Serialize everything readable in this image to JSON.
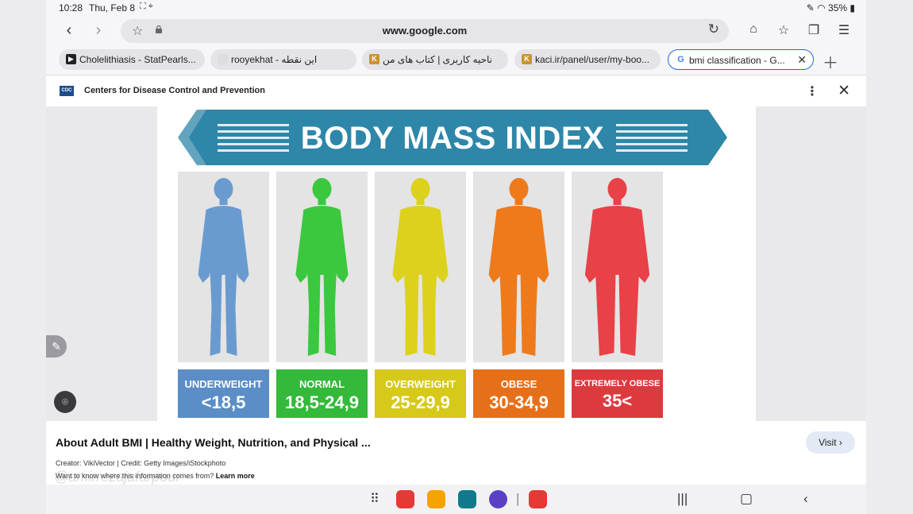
{
  "status_bar": {
    "time": "10:28",
    "date": "Thu, Feb 8",
    "battery": "35%"
  },
  "address_bar": {
    "url": "www.google.com"
  },
  "tabs": [
    {
      "title": "Cholelithiasis - StatPearls...",
      "active": false
    },
    {
      "title": "rooyekhat - این نقطه",
      "active": false
    },
    {
      "title": "ناحیه کاربری | کتاب های من",
      "active": false
    },
    {
      "title": "kaci.ir/panel/user/my-boo...",
      "active": false
    },
    {
      "title": "bmi classification - G...",
      "active": true
    }
  ],
  "source": {
    "name": "Centers for Disease Control and Prevention",
    "logo_text": "CDC"
  },
  "infographic": {
    "title": "BODY MASS INDEX",
    "categories": [
      {
        "name": "UNDERWEIGHT",
        "range": "<18,5",
        "color": "#6a9bd0",
        "label_color": "#5b8ec6"
      },
      {
        "name": "NORMAL",
        "range": "18,5-24,9",
        "color": "#3bc83f",
        "label_color": "#34b93a"
      },
      {
        "name": "OVERWEIGHT",
        "range": "25-29,9",
        "color": "#dcd21d",
        "label_color": "#d6c91a"
      },
      {
        "name": "OBESE",
        "range": "30-34,9",
        "color": "#ee7a1c",
        "label_color": "#e6701a"
      },
      {
        "name": "EXTREMELY OBESE",
        "range": "35<",
        "color": "#e84147",
        "label_color": "#dd3a40"
      }
    ]
  },
  "caption": {
    "title": "About Adult BMI | Healthy Weight, Nutrition, and Physical ...",
    "visit_label": "Visit ›",
    "credit": "Creator: VikiVector | Credit: Getty Images/iStockphoto",
    "where_text": "Want to know where this information comes from?",
    "learn_more": "Learn more"
  },
  "watermark": "@amirrezajafarpour"
}
